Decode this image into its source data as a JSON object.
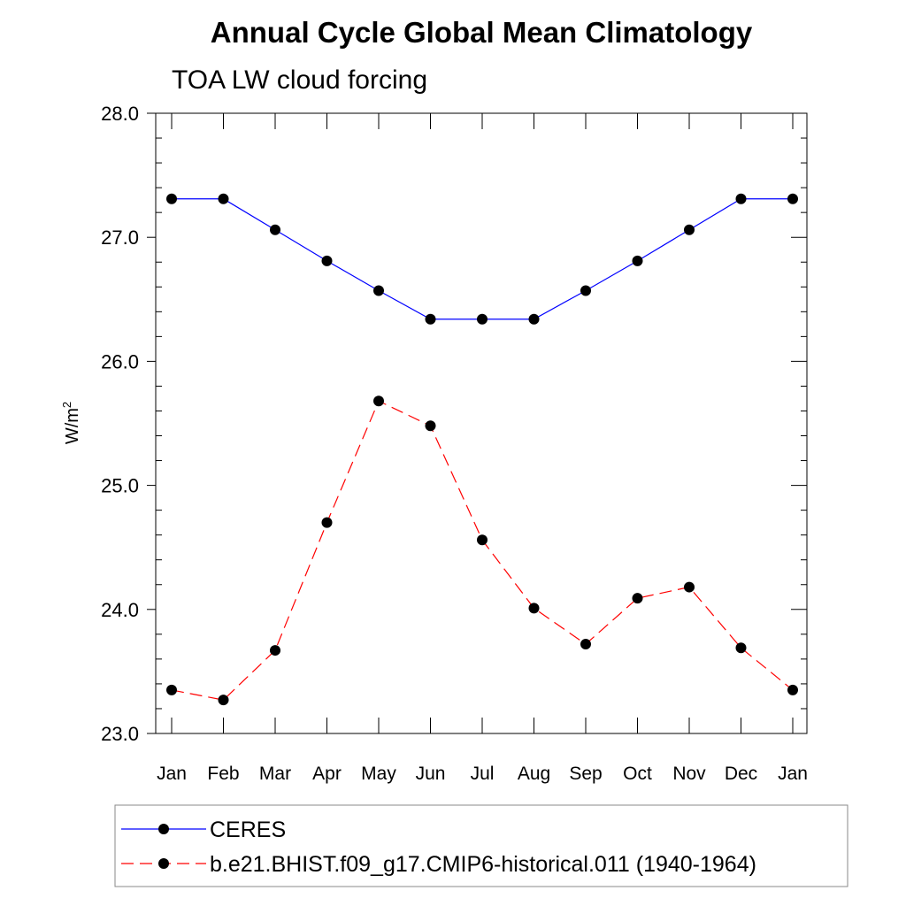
{
  "chart_data": {
    "type": "line",
    "title": "Annual Cycle Global Mean Climatology",
    "subtitle": "TOA LW cloud forcing",
    "xlabel": "",
    "ylabel_base": "W/m",
    "ylabel_sup": "2",
    "categories": [
      "Jan",
      "Feb",
      "Mar",
      "Apr",
      "May",
      "Jun",
      "Jul",
      "Aug",
      "Sep",
      "Oct",
      "Nov",
      "Dec",
      "Jan"
    ],
    "ylim": [
      23.0,
      28.0
    ],
    "yticks": [
      23.0,
      24.0,
      25.0,
      26.0,
      27.0,
      28.0
    ],
    "ytick_labels": [
      "23.0",
      "24.0",
      "25.0",
      "26.0",
      "27.0",
      "28.0"
    ],
    "yminor_step": 0.2,
    "grid": false,
    "legend_position": "bottom",
    "series": [
      {
        "name": "CERES",
        "color": "#0000ff",
        "dash": "solid",
        "marker": "filled-circle",
        "values": [
          27.31,
          27.31,
          27.06,
          26.81,
          26.57,
          26.34,
          26.34,
          26.34,
          26.57,
          26.81,
          27.06,
          27.31,
          27.31
        ]
      },
      {
        "name": "b.e21.BHIST.f09_g17.CMIP6-historical.011 (1940-1964)",
        "color": "#ff0000",
        "dash": "dashed",
        "marker": "filled-circle",
        "values": [
          23.35,
          23.27,
          23.67,
          24.7,
          25.68,
          25.48,
          24.56,
          24.01,
          23.72,
          24.09,
          24.18,
          23.69,
          23.35
        ]
      }
    ]
  }
}
